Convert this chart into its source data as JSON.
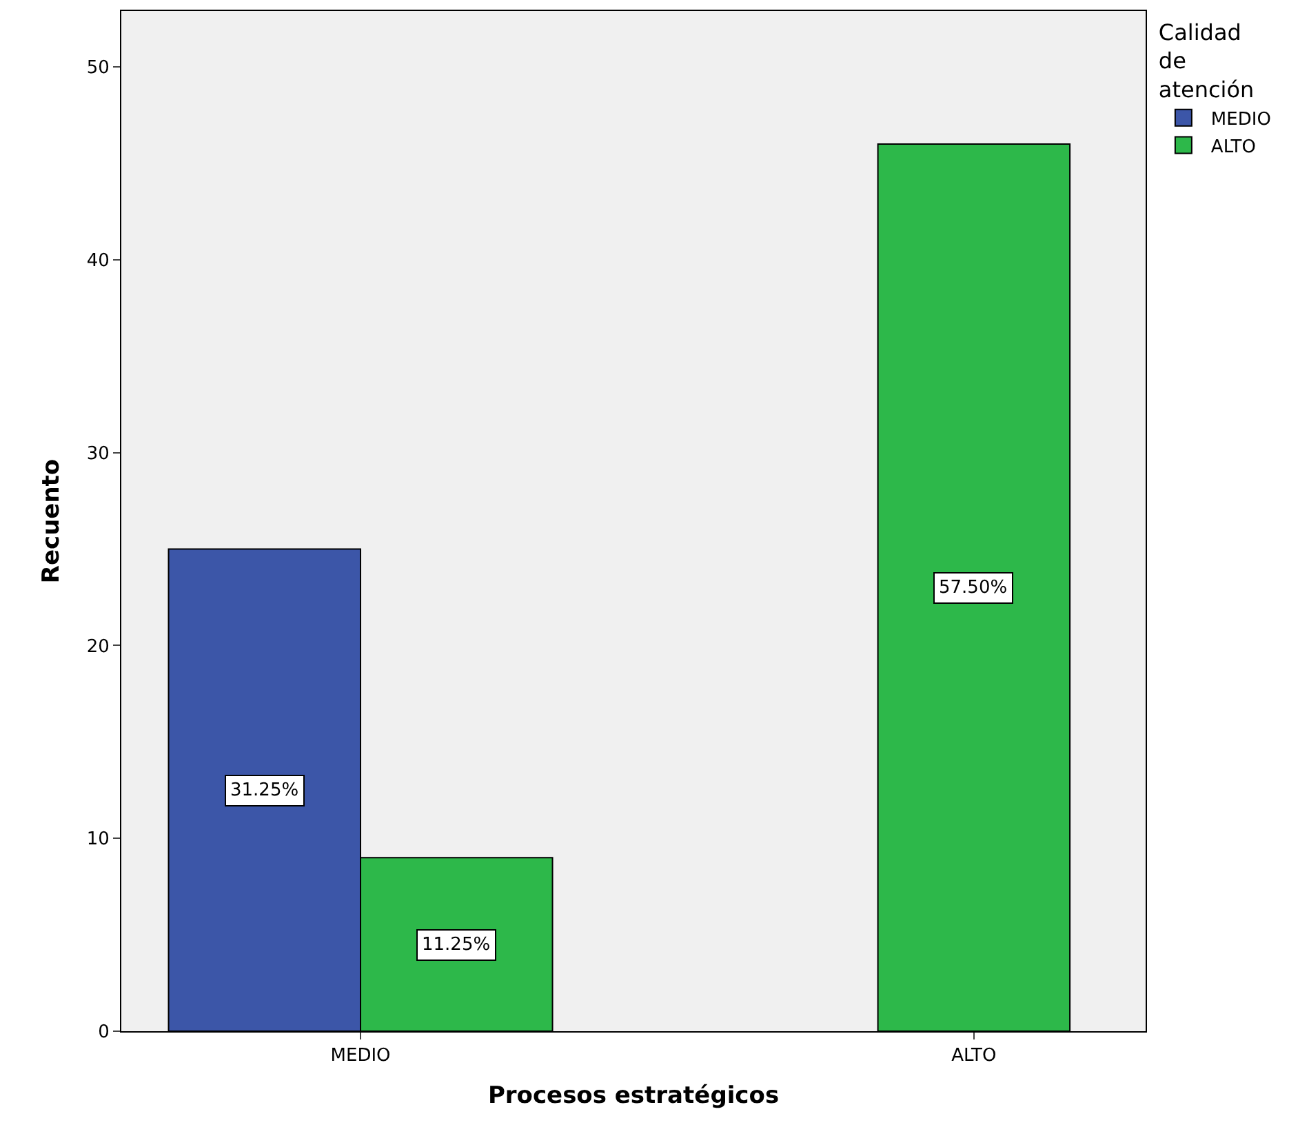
{
  "chart_data": {
    "type": "bar",
    "xlabel": "Procesos estratégicos",
    "ylabel": "Recuento",
    "legend_title": "Calidad de atención",
    "categories": [
      "MEDIO",
      "ALTO"
    ],
    "series": [
      {
        "name": "MEDIO",
        "color": "#3c56a8",
        "values": [
          25,
          null
        ]
      },
      {
        "name": "ALTO",
        "color": "#2db84a",
        "values": [
          9,
          46
        ]
      }
    ],
    "annotations": [
      "31.25%",
      "11.25%",
      "57.50%"
    ],
    "ylim": [
      0,
      52.9
    ],
    "yticks": [
      0,
      10,
      20,
      30,
      40,
      50
    ],
    "grid": false,
    "legend": "top right"
  }
}
